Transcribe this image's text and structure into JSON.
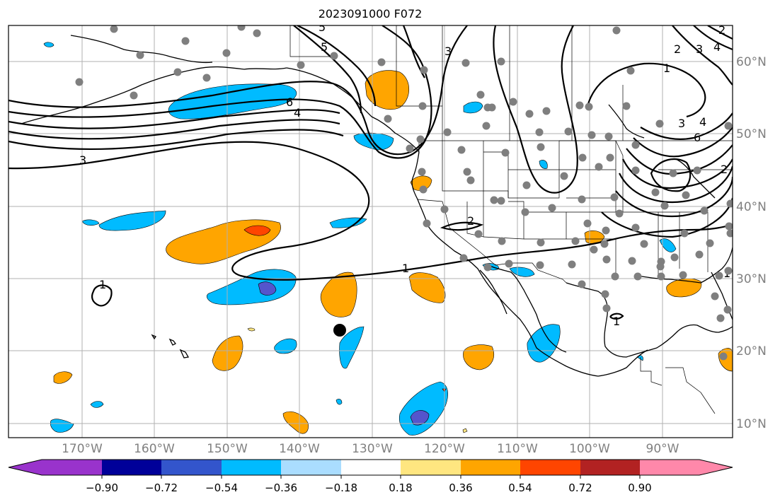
{
  "title": "2023091000 F072",
  "lon_labels": [
    "170°W",
    "160°W",
    "150°W",
    "140°W",
    "130°W",
    "120°W",
    "110°W",
    "100°W",
    "90°W"
  ],
  "lat_labels": [
    "60°N",
    "50°N",
    "40°N",
    "30°N",
    "20°N",
    "10°N"
  ],
  "contour_labels": [
    "5",
    "5",
    "3",
    "2",
    "3",
    "2",
    "4",
    "1",
    "6",
    "4",
    "2",
    "3",
    "4",
    "6",
    "2",
    "1",
    "2",
    "1",
    "1"
  ],
  "colorbar": {
    "ticks": [
      "−0.90",
      "−0.72",
      "−0.54",
      "−0.36",
      "−0.18",
      "0.18",
      "0.36",
      "0.54",
      "0.72",
      "0.90"
    ],
    "colors": [
      "#9933cc",
      "#000099",
      "#3355cc",
      "#00bbff",
      "#aaddff",
      "#ffffff",
      "#ffe680",
      "#ffa500",
      "#ff4500",
      "#b22222",
      "#ff88aa"
    ]
  },
  "palette": {
    "light_blue": "#00bbff",
    "dark_blue": "#5555cc",
    "orange": "#ffa500",
    "red": "#ff4500",
    "station": "#7f7f7f",
    "grid": "#b0b0b0",
    "axis_label": "#808080"
  }
}
